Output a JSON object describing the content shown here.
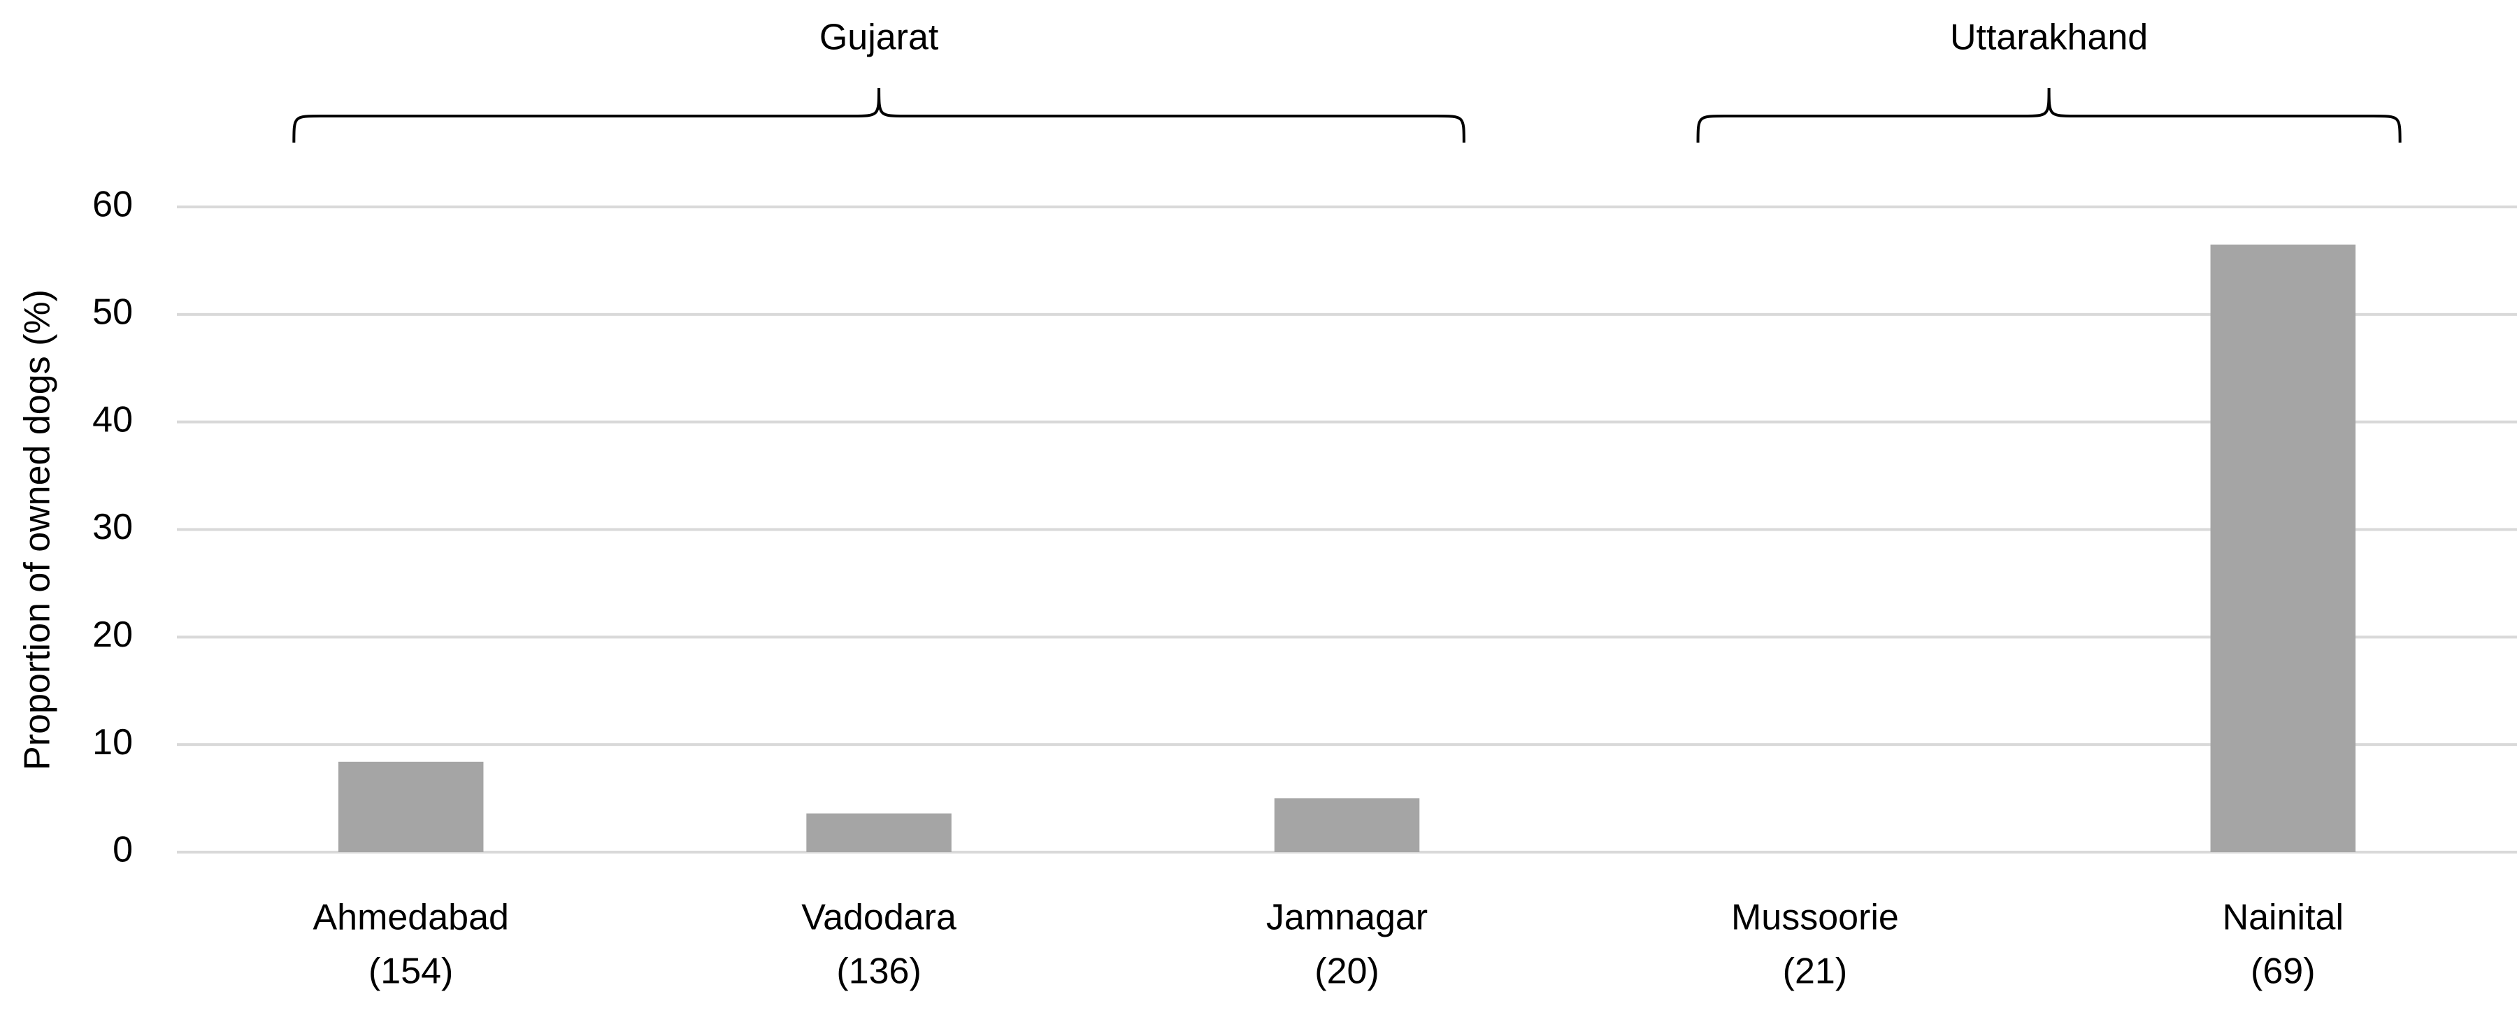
{
  "chart_data": {
    "type": "bar",
    "y_axis_label": "Proportion of owned dogs (%)",
    "categories": [
      "Ahmedabad",
      "Vadodara",
      "Jamnagar",
      "Mussoorie",
      "Nainital"
    ],
    "sample_sizes": [
      "(154)",
      "(136)",
      "(20)",
      "(21)",
      "(69)"
    ],
    "values": [
      8.4,
      3.6,
      5.0,
      0,
      56.5
    ],
    "color": "#a5a5a5",
    "groups": [
      {
        "name": "Gujarat",
        "members": [
          "Ahmedabad",
          "Vadodara",
          "Jamnagar"
        ]
      },
      {
        "name": "Uttarakhand",
        "members": [
          "Mussoorie",
          "Nainital"
        ]
      }
    ],
    "ylim": [
      0,
      60
    ],
    "yticks": [
      0,
      10,
      20,
      30,
      40,
      50,
      60
    ],
    "grid": true
  }
}
